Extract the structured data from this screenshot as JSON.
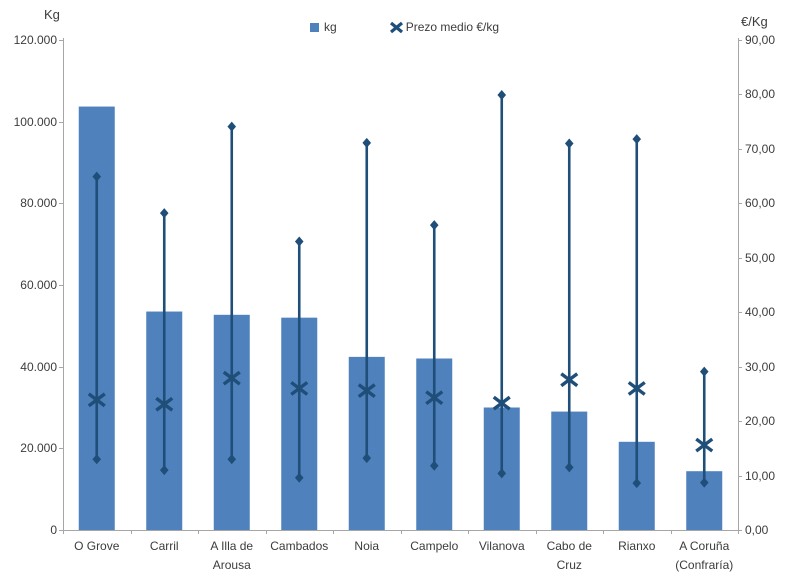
{
  "chart_data": {
    "type": "bar",
    "subtype": "bars-with-high-low-price-lines-and-x-markers",
    "title": "",
    "grid": false,
    "legend_position": "top-center",
    "colors": {
      "bar": "#4F81BD",
      "marker": "#1F4E79",
      "axis": "#A6A6A6",
      "text": "#3C3C3C"
    },
    "legend": [
      {
        "label": "kg",
        "marker": "square"
      },
      {
        "label": "Prezo medio €/kg",
        "marker": "x"
      }
    ],
    "left_axis": {
      "title": "Kg",
      "min": 0,
      "max": 120000,
      "step": 20000,
      "tick_labels": [
        "0",
        "20.000",
        "40.000",
        "60.000",
        "80.000",
        "100.000",
        "120.000"
      ]
    },
    "right_axis": {
      "title": "€/Kg",
      "min": 0,
      "max": 90,
      "step": 10,
      "tick_labels": [
        "0,00",
        "10,00",
        "20,00",
        "30,00",
        "40,00",
        "50,00",
        "60,00",
        "70,00",
        "80,00",
        "90,00"
      ]
    },
    "categories": [
      "O Grove",
      "Carril",
      "A Illa de Arousa",
      "Cambados",
      "Noia",
      "Campelo",
      "Vilanova",
      "Cabo de Cruz",
      "Rianxo",
      "A Coruña (Confraría)"
    ],
    "category_tick_lines": [
      [
        "O Grove"
      ],
      [
        "Carril"
      ],
      [
        "A Illa de",
        "Arousa"
      ],
      [
        "Cambados"
      ],
      [
        "Noia"
      ],
      [
        "Campelo"
      ],
      [
        "Vilanova"
      ],
      [
        "Cabo de",
        "Cruz"
      ],
      [
        "Rianxo"
      ],
      [
        "A Coruña",
        "(Confraría)"
      ]
    ],
    "series": [
      {
        "name": "kg",
        "type": "bar",
        "axis": "left",
        "values": [
          103700,
          53500,
          52700,
          52000,
          42400,
          42000,
          30000,
          29000,
          21600,
          14400
        ]
      },
      {
        "name": "Prezo medio €/kg",
        "type": "x_marker",
        "axis": "right",
        "values": [
          23.9,
          23.1,
          27.9,
          26.0,
          25.6,
          24.3,
          23.3,
          27.6,
          26.0,
          15.6
        ]
      },
      {
        "name": "price_range",
        "type": "high_low_line",
        "axis": "right",
        "high": [
          64.9,
          58.2,
          74.1,
          53.0,
          71.1,
          56.0,
          79.9,
          71.0,
          71.8,
          29.1
        ],
        "low": [
          13.0,
          11.0,
          13.0,
          9.6,
          13.2,
          11.8,
          10.4,
          11.5,
          8.6,
          8.7
        ]
      }
    ]
  }
}
